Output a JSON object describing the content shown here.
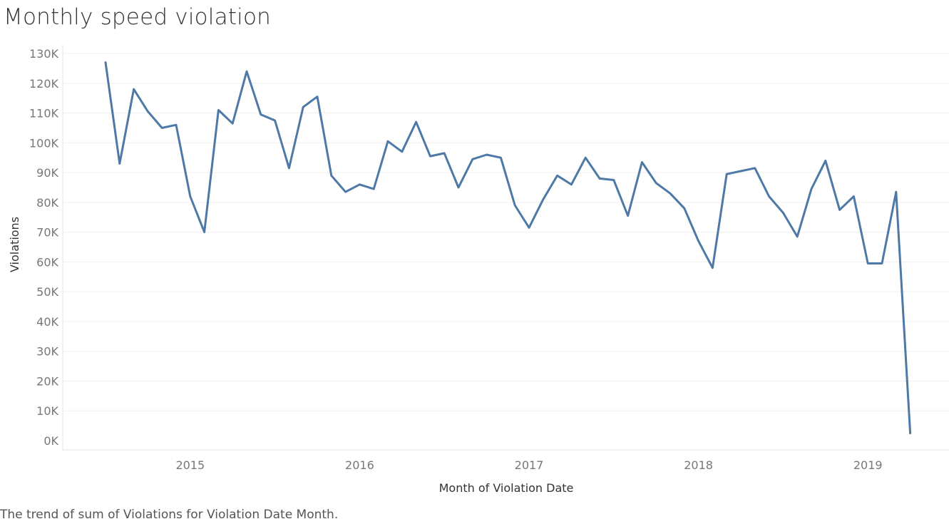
{
  "chart_data": {
    "type": "line",
    "title": "Monthly speed violation",
    "xlabel": "Month of Violation Date",
    "ylabel": "Violations",
    "caption": "The trend of sum of Violations for Violation Date Month.",
    "ylim": [
      0,
      130000
    ],
    "y_ticks": [
      0,
      10000,
      20000,
      30000,
      40000,
      50000,
      60000,
      70000,
      80000,
      90000,
      100000,
      110000,
      120000,
      130000
    ],
    "y_tick_labels": [
      "0K",
      "10K",
      "20K",
      "30K",
      "40K",
      "50K",
      "60K",
      "70K",
      "80K",
      "90K",
      "100K",
      "110K",
      "120K",
      "130K"
    ],
    "x_ticks": [
      "2015",
      "2016",
      "2017",
      "2018",
      "2019"
    ],
    "grid": true,
    "line_color": "#4e79a7",
    "x": [
      "2014-07",
      "2014-08",
      "2014-09",
      "2014-10",
      "2014-11",
      "2014-12",
      "2015-01",
      "2015-02",
      "2015-03",
      "2015-04",
      "2015-05",
      "2015-06",
      "2015-07",
      "2015-08",
      "2015-09",
      "2015-10",
      "2015-11",
      "2015-12",
      "2016-01",
      "2016-02",
      "2016-03",
      "2016-04",
      "2016-05",
      "2016-06",
      "2016-07",
      "2016-08",
      "2016-09",
      "2016-10",
      "2016-11",
      "2016-12",
      "2017-01",
      "2017-02",
      "2017-03",
      "2017-04",
      "2017-05",
      "2017-06",
      "2017-07",
      "2017-08",
      "2017-09",
      "2017-10",
      "2017-11",
      "2017-12",
      "2018-01",
      "2018-02",
      "2018-03",
      "2018-04",
      "2018-05",
      "2018-06",
      "2018-07",
      "2018-08",
      "2018-09",
      "2018-10",
      "2018-11",
      "2018-12",
      "2019-01",
      "2019-02",
      "2019-03",
      "2019-04"
    ],
    "values": [
      127000,
      93000,
      118000,
      110500,
      105000,
      106000,
      82000,
      70000,
      111000,
      106500,
      124000,
      109500,
      107500,
      91500,
      112000,
      115500,
      89000,
      83500,
      86000,
      84500,
      100500,
      97000,
      107000,
      95500,
      96500,
      85000,
      94500,
      96000,
      95000,
      79000,
      71500,
      81000,
      89000,
      86000,
      95000,
      88000,
      87500,
      75500,
      93500,
      86500,
      83000,
      78000,
      67000,
      58000,
      89500,
      90500,
      91500,
      82000,
      76500,
      68500,
      84500,
      94000,
      77500,
      82000,
      59500,
      59500,
      83500,
      2500
    ]
  }
}
